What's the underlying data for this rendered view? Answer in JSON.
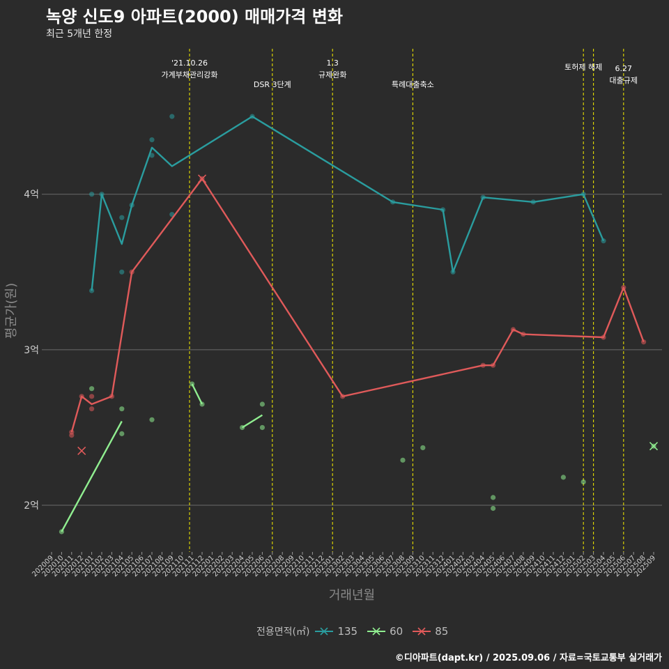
{
  "title": "녹양 신도9 아파트(2000) 매매가격 변화",
  "subtitle": "최근 5개년 한정",
  "caption": "©디아파트(dapt.kr) / 2025.09.06 / 자료=국토교통부 실거래가",
  "chart_data": {
    "type": "line",
    "xlabel": "거래년월",
    "ylabel": "평균가(원)",
    "ylim": [
      1.7,
      4.98
    ],
    "yticks": [
      {
        "v": 2,
        "label": "2억"
      },
      {
        "v": 3,
        "label": "3억"
      },
      {
        "v": 4,
        "label": "4억"
      }
    ],
    "x_categories": [
      "202009",
      "202010",
      "202011",
      "202012",
      "202101",
      "202102",
      "202103",
      "202104",
      "202105",
      "202106",
      "202107",
      "202108",
      "202109",
      "202110",
      "202111",
      "202112",
      "202201",
      "202202",
      "202203",
      "202204",
      "202205",
      "202206",
      "202207",
      "202208",
      "202209",
      "202210",
      "202211",
      "202212",
      "202301",
      "202302",
      "202303",
      "202304",
      "202305",
      "202306",
      "202307",
      "202308",
      "202309",
      "202310",
      "202311",
      "202312",
      "202401",
      "202402",
      "202403",
      "202404",
      "202405",
      "202406",
      "202407",
      "202408",
      "202409",
      "202410",
      "202411",
      "202412",
      "202501",
      "202502",
      "202503",
      "202504",
      "202505",
      "202506",
      "202507",
      "202508",
      "202509"
    ],
    "legend_title": "전용면적(㎡)",
    "series": [
      {
        "name": "135",
        "color": "#2a9d9f",
        "line": [
          [
            "202101",
            3.38
          ],
          [
            "202102",
            4.0
          ],
          [
            "202104",
            3.68
          ],
          [
            "202105",
            3.93
          ],
          [
            "202107",
            4.3
          ],
          [
            "202109",
            4.18
          ],
          [
            "202205",
            4.5
          ],
          [
            "202307",
            3.95
          ],
          [
            "202312",
            3.9
          ],
          [
            "202401",
            3.5
          ],
          [
            "202404",
            3.98
          ],
          [
            "202409",
            3.95
          ],
          [
            "202502",
            4.0
          ],
          [
            "202504",
            3.7
          ]
        ],
        "points": [
          [
            "202101",
            4.0
          ],
          [
            "202101",
            3.38
          ],
          [
            "202102",
            4.0
          ],
          [
            "202104",
            3.85
          ],
          [
            "202104",
            3.5
          ],
          [
            "202105",
            3.93
          ],
          [
            "202107",
            4.35
          ],
          [
            "202107",
            4.25
          ],
          [
            "202109",
            4.5
          ],
          [
            "202109",
            3.87
          ],
          [
            "202205",
            4.5
          ],
          [
            "202307",
            3.95
          ],
          [
            "202312",
            3.9
          ],
          [
            "202401",
            3.5
          ],
          [
            "202404",
            3.98
          ],
          [
            "202409",
            3.95
          ],
          [
            "202502",
            4.0
          ],
          [
            "202504",
            3.7
          ]
        ],
        "crosses": []
      },
      {
        "name": "60",
        "color": "#90ee90",
        "line_segments": [
          [
            [
              "202010",
              1.83
            ],
            [
              "202104",
              2.54
            ]
          ],
          [
            [
              "202111",
              2.78
            ],
            [
              "202112",
              2.65
            ]
          ],
          [
            [
              "202204",
              2.5
            ],
            [
              "202206",
              2.58
            ]
          ]
        ],
        "points": [
          [
            "202010",
            1.83
          ],
          [
            "202101",
            2.75
          ],
          [
            "202104",
            2.62
          ],
          [
            "202104",
            2.46
          ],
          [
            "202107",
            2.55
          ],
          [
            "202111",
            2.78
          ],
          [
            "202112",
            2.65
          ],
          [
            "202204",
            2.5
          ],
          [
            "202206",
            2.65
          ],
          [
            "202206",
            2.5
          ],
          [
            "202308",
            2.29
          ],
          [
            "202310",
            2.37
          ],
          [
            "202405",
            2.05
          ],
          [
            "202405",
            1.98
          ],
          [
            "202412",
            2.18
          ],
          [
            "202502",
            2.15
          ],
          [
            "202509",
            2.38
          ]
        ],
        "crosses": [
          [
            "202509",
            2.38
          ]
        ]
      },
      {
        "name": "85",
        "color": "#e05a5a",
        "line": [
          [
            "202011",
            2.47
          ],
          [
            "202012",
            2.7
          ],
          [
            "202101",
            2.65
          ],
          [
            "202103",
            2.7
          ],
          [
            "202105",
            3.5
          ],
          [
            "202112",
            4.1
          ],
          [
            "202302",
            2.7
          ],
          [
            "202404",
            2.9
          ],
          [
            "202405",
            2.9
          ],
          [
            "202407",
            3.13
          ],
          [
            "202408",
            3.1
          ],
          [
            "202504",
            3.08
          ],
          [
            "202506",
            3.4
          ],
          [
            "202508",
            3.05
          ]
        ],
        "points": [
          [
            "202011",
            2.47
          ],
          [
            "202011",
            2.45
          ],
          [
            "202012",
            2.7
          ],
          [
            "202101",
            2.7
          ],
          [
            "202101",
            2.62
          ],
          [
            "202103",
            2.7
          ],
          [
            "202105",
            3.5
          ],
          [
            "202112",
            4.1
          ],
          [
            "202302",
            2.7
          ],
          [
            "202404",
            2.9
          ],
          [
            "202405",
            2.9
          ],
          [
            "202407",
            3.13
          ],
          [
            "202408",
            3.1
          ],
          [
            "202504",
            3.08
          ],
          [
            "202506",
            3.4
          ],
          [
            "202508",
            3.05
          ]
        ],
        "crosses": [
          [
            "202012",
            2.35
          ],
          [
            "202112",
            4.1
          ]
        ]
      }
    ],
    "events": [
      {
        "x": "202110.75",
        "lines": [
          "'21.10.26",
          "가계부채관리강화"
        ],
        "level": 0
      },
      {
        "x": "202207",
        "lines": [
          "DSR 3단계"
        ],
        "level": 2
      },
      {
        "x": "202301",
        "lines": [
          "1.3",
          "규제완화"
        ],
        "level": 0
      },
      {
        "x": "202309",
        "lines": [
          "특례대출축소"
        ],
        "level": 2
      },
      {
        "x": "202502",
        "lines": [
          "토허제 해제"
        ],
        "level": 1
      },
      {
        "x": "202503",
        "lines": [],
        "level": 1
      },
      {
        "x": "202506",
        "lines": [
          "6.27",
          "대출규제"
        ],
        "level": 3
      }
    ]
  }
}
